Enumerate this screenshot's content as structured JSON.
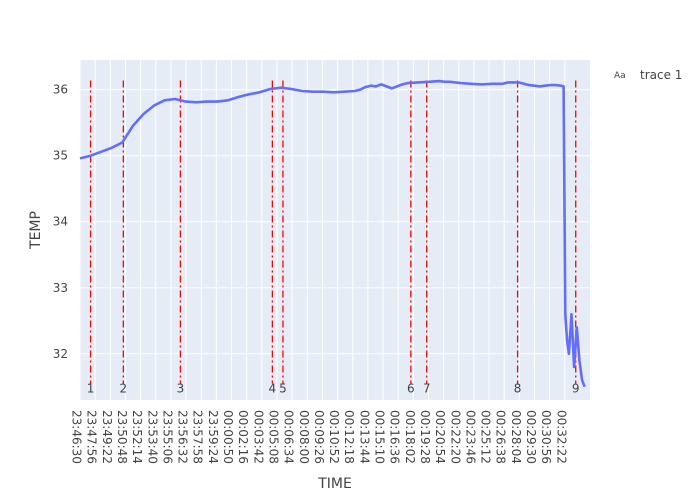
{
  "chart_data": {
    "type": "line",
    "xlabel": "TIME",
    "ylabel": "TEMP",
    "xlim": [
      "23:46:30",
      "00:34:45"
    ],
    "ylim": [
      31.3,
      36.45
    ],
    "grid": true,
    "legend": {
      "placement": "top-right",
      "entries": [
        "trace 1"
      ],
      "swatch_text": "Aa"
    },
    "x_ticks": [
      "23:46:30",
      "23:47:56",
      "23:49:22",
      "23:50:48",
      "23:52:14",
      "23:53:40",
      "23:55:06",
      "23:56:32",
      "23:57:58",
      "23:59:24",
      "00:00:50",
      "00:02:16",
      "00:03:42",
      "00:05:08",
      "00:06:34",
      "00:08:00",
      "00:09:26",
      "00:10:52",
      "00:12:18",
      "00:13:44",
      "00:15:10",
      "00:16:36",
      "00:18:02",
      "00:19:28",
      "00:20:54",
      "00:22:20",
      "00:23:46",
      "00:25:12",
      "00:26:38",
      "00:28:04",
      "00:29:30",
      "00:30:56",
      "00:32:22"
    ],
    "y_ticks": [
      32,
      33,
      34,
      35,
      36
    ],
    "series": [
      {
        "name": "trace 1",
        "color": "#636efa",
        "x": [
          "23:46:30",
          "23:47:30",
          "23:48:30",
          "23:49:30",
          "23:50:30",
          "23:51:30",
          "23:52:30",
          "23:53:30",
          "23:54:30",
          "23:55:30",
          "23:56:30",
          "23:57:30",
          "23:58:30",
          "23:59:30",
          "00:00:30",
          "00:01:30",
          "00:02:30",
          "00:03:30",
          "00:04:30",
          "00:05:00",
          "00:05:30",
          "00:06:30",
          "00:07:30",
          "00:08:30",
          "00:09:30",
          "00:10:30",
          "00:11:30",
          "00:12:30",
          "00:13:00",
          "00:13:30",
          "00:14:00",
          "00:14:30",
          "00:15:00",
          "00:15:30",
          "00:16:00",
          "00:16:30",
          "00:17:00",
          "00:17:30",
          "00:18:30",
          "00:19:30",
          "00:20:30",
          "00:21:00",
          "00:21:30",
          "00:22:30",
          "00:23:30",
          "00:24:30",
          "00:25:30",
          "00:26:30",
          "00:27:00",
          "00:27:30",
          "00:28:00",
          "00:28:30",
          "00:29:00",
          "00:29:30",
          "00:30:00",
          "00:30:30",
          "00:31:00",
          "00:31:30",
          "00:32:00",
          "00:32:15",
          "00:32:25",
          "00:32:35",
          "00:32:45",
          "00:33:00",
          "00:33:15",
          "00:33:30",
          "00:33:45",
          "00:34:00",
          "00:34:15"
        ],
        "y": [
          34.96,
          35.0,
          35.06,
          35.12,
          35.2,
          35.45,
          35.63,
          35.76,
          35.84,
          35.86,
          35.82,
          35.81,
          35.82,
          35.82,
          35.84,
          35.89,
          35.93,
          35.96,
          36.01,
          36.02,
          36.03,
          36.01,
          35.98,
          35.97,
          35.97,
          35.96,
          35.97,
          35.98,
          36.0,
          36.04,
          36.06,
          36.05,
          36.08,
          36.05,
          36.02,
          36.05,
          36.08,
          36.1,
          36.11,
          36.12,
          36.13,
          36.12,
          36.12,
          36.1,
          36.09,
          36.08,
          36.09,
          36.09,
          36.11,
          36.11,
          36.11,
          36.09,
          36.07,
          36.06,
          36.05,
          36.06,
          36.07,
          36.07,
          36.06,
          36.05,
          32.6,
          32.2,
          32.0,
          32.6,
          31.8,
          32.4,
          31.9,
          31.6,
          31.5
        ]
      }
    ],
    "vlines": [
      {
        "label": "1",
        "x": "23:47:30",
        "color": "#ff0000"
      },
      {
        "label": "2",
        "x": "23:50:36",
        "color": "#ff0000"
      },
      {
        "label": "3",
        "x": "23:56:00",
        "color": "#ff0000"
      },
      {
        "label": "4",
        "x": "00:04:42",
        "color": "#ff0000"
      },
      {
        "label": "5",
        "x": "00:05:42",
        "color": "#ff0000"
      },
      {
        "label": "6",
        "x": "00:17:48",
        "color": "#ff0000"
      },
      {
        "label": "7",
        "x": "00:19:18",
        "color": "#ff0000"
      },
      {
        "label": "8",
        "x": "00:27:54",
        "color": "#ff0000"
      },
      {
        "label": "9",
        "x": "00:33:24",
        "color": "#ff0000"
      }
    ]
  },
  "colors": {
    "plot_bg": "#e5ecf6",
    "grid": "#ffffff",
    "trace": "#636efa",
    "vline": "#ff0000"
  }
}
